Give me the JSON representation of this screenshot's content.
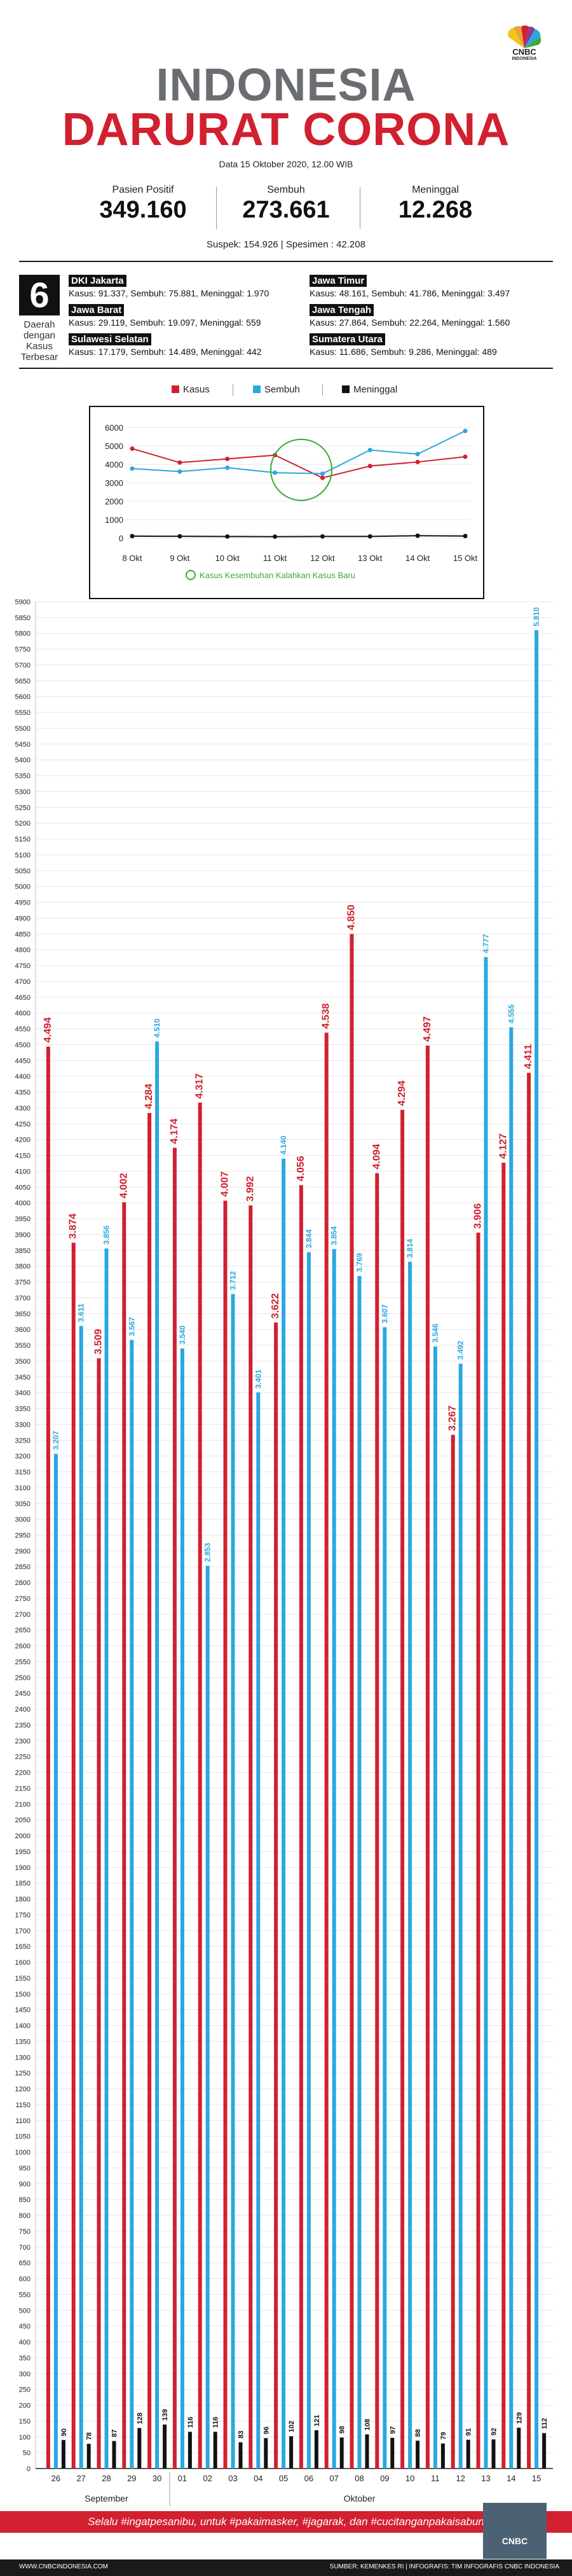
{
  "header": {
    "logo": {
      "line1": "CNBC",
      "line2": "INDONESIA"
    },
    "title_line1": "INDONESIA",
    "title_line2": "DARURAT CORONA",
    "date": "Data 15 Oktober 2020, 12.00 WIB"
  },
  "stats": [
    {
      "label": "Pasien Positif",
      "value": "349.160"
    },
    {
      "label": "Sembuh",
      "value": "273.661"
    },
    {
      "label": "Meninggal",
      "value": "12.268"
    }
  ],
  "suspek_line": "Suspek: 154.926  |  Spesimen : 42.208",
  "daerah": {
    "count": "6",
    "caption": "Daerah dengan Kasus Terbesar",
    "regions": [
      {
        "name": "DKI Jakarta",
        "data": "Kasus: 91.337, Sembuh: 75.881, Meninggal: 1.970"
      },
      {
        "name": "Jawa Timur",
        "data": "Kasus: 48.161, Sembuh: 41.786, Meninggal: 3.497"
      },
      {
        "name": "Jawa Barat",
        "data": "Kasus: 29.119, Sembuh: 19.097, Meninggal: 559"
      },
      {
        "name": "Jawa Tengah",
        "data": "Kasus: 27.864, Sembuh: 22.264, Meninggal: 1.560"
      },
      {
        "name": "Sulawesi Selatan",
        "data": "Kasus: 17.179, Sembuh: 14.489, Meninggal: 442"
      },
      {
        "name": "Sumatera Utara",
        "data": "Kasus: 11.686, Sembuh: 9.286, Meninggal: 489"
      }
    ]
  },
  "legend": {
    "kasus": "Kasus",
    "sembuh": "Sembuh",
    "meninggal": "Meninggal"
  },
  "colors": {
    "kasus": "#d1202f",
    "sembuh": "#29a8e0",
    "meninggal": "#111111",
    "title_gray": "#6a6d71",
    "highlight_green": "#3aaa35"
  },
  "chart_data": [
    {
      "type": "line",
      "categories": [
        "8 Okt",
        "9 Okt",
        "10 Okt",
        "11 Okt",
        "12 Okt",
        "13 Okt",
        "14 Okt",
        "15 Okt"
      ],
      "ylim": [
        0,
        6000
      ],
      "yticks": [
        0,
        1000,
        2000,
        3000,
        4000,
        5000,
        6000
      ],
      "series": [
        {
          "name": "Kasus",
          "values": [
            4850,
            4094,
            4294,
            4497,
            3267,
            3906,
            4127,
            4411
          ]
        },
        {
          "name": "Sembuh",
          "values": [
            3769,
            3607,
            3814,
            3546,
            3492,
            4777,
            4555,
            5810
          ]
        },
        {
          "name": "Meninggal",
          "values": [
            108,
            97,
            88,
            79,
            91,
            92,
            129,
            112
          ]
        }
      ],
      "annotation": "Kasus Kesembuhan Kalahkan Kasus Baru"
    },
    {
      "type": "bar",
      "categories": [
        "26",
        "27",
        "28",
        "29",
        "30",
        "01",
        "02",
        "03",
        "04",
        "05",
        "06",
        "07",
        "08",
        "09",
        "10",
        "11",
        "12",
        "13",
        "14",
        "15"
      ],
      "month_labels": [
        {
          "label": "September"
        },
        {
          "label": "Oktober"
        }
      ],
      "ylim": [
        0,
        5900
      ],
      "ytick_step": 50,
      "series": [
        {
          "name": "Kasus",
          "values": [
            4494,
            3874,
            3509,
            4002,
            4284,
            4174,
            4317,
            4007,
            3992,
            3622,
            4056,
            4538,
            4850,
            4094,
            4294,
            4497,
            3267,
            3906,
            4127,
            4411
          ],
          "labels": [
            "4.494",
            "3.874",
            "3.509",
            "4.002",
            "4.284",
            "4.174",
            "4.317",
            "4.007",
            "3.992",
            "3.622",
            "4.056",
            "4.538",
            "4.850",
            "4.094",
            "4.294",
            "4.497",
            "3.267",
            "3.906",
            "4.127",
            "4.411"
          ]
        },
        {
          "name": "Sembuh",
          "values": [
            3207,
            3611,
            3856,
            3567,
            4510,
            3540,
            2853,
            3712,
            3401,
            4140,
            3844,
            3854,
            3769,
            3607,
            3814,
            3546,
            3492,
            4777,
            4555,
            5810
          ],
          "labels": [
            "3.207",
            "3.611",
            "3.856",
            "3.567",
            "4.510",
            "3.540",
            "2.853",
            "3.712",
            "3.401",
            "4.140",
            "3.844",
            "3.854",
            "3.769",
            "3.607",
            "3.814",
            "3.546",
            "3.492",
            "4.777",
            "4.555",
            "5.810"
          ]
        },
        {
          "name": "Meninggal",
          "values": [
            90,
            78,
            87,
            128,
            139,
            116,
            116,
            83,
            96,
            102,
            121,
            98,
            108,
            97,
            88,
            79,
            91,
            92,
            129,
            112
          ],
          "labels": [
            "90",
            "78",
            "87",
            "128",
            "139",
            "116",
            "116",
            "83",
            "96",
            "102",
            "121",
            "98",
            "108",
            "97",
            "88",
            "79",
            "91",
            "92",
            "129",
            "112"
          ]
        }
      ]
    }
  ],
  "footer": {
    "slogan": "Selalu #ingatpesanibu, untuk #pakaimasker, #jagarak, dan #cucitanganpakaisabun",
    "website": "WWW.CNBCINDONESIA.COM",
    "source": "SUMBER: KEMENKES RI | INFOGRAFIS: TIM INFOGRAFIS CNBC INDONESIA"
  }
}
